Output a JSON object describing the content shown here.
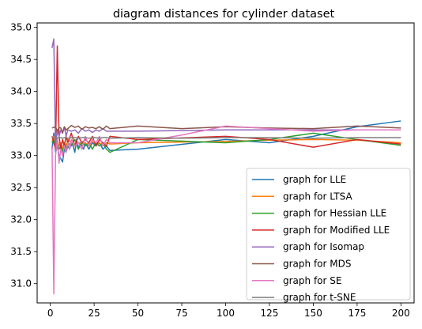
{
  "chart_data": {
    "type": "line",
    "title": "diagram distances for cylinder dataset",
    "xlabel": "",
    "ylabel": "",
    "xlim": [
      -7.5,
      207.5
    ],
    "ylim": [
      30.7,
      35.07
    ],
    "xticks": [
      0,
      25,
      50,
      75,
      100,
      125,
      150,
      175,
      200
    ],
    "yticks": [
      31.0,
      31.5,
      32.0,
      32.5,
      33.0,
      33.5,
      34.0,
      34.5,
      35.0
    ],
    "ytick_format": 1,
    "grid": false,
    "legend_position": "lower right",
    "series": [
      {
        "name": "graph for LLE",
        "color": "#1f77b4",
        "x": [
          1,
          2,
          3,
          4,
          5,
          6,
          7,
          8,
          9,
          10,
          11,
          12,
          13,
          14,
          15,
          16,
          17,
          18,
          19,
          20,
          22,
          24,
          26,
          28,
          30,
          32,
          34,
          50,
          100,
          125,
          150,
          175,
          200
        ],
        "y": [
          33.1,
          33.35,
          33.05,
          33.15,
          33.0,
          32.95,
          32.9,
          33.1,
          33.05,
          33.15,
          33.1,
          33.2,
          33.15,
          33.05,
          33.25,
          33.1,
          33.2,
          33.15,
          33.1,
          33.2,
          33.1,
          33.2,
          33.15,
          33.2,
          33.1,
          33.15,
          33.08,
          33.1,
          33.25,
          33.2,
          33.3,
          33.45,
          33.54
        ]
      },
      {
        "name": "graph for LTSA",
        "color": "#ff7f0e",
        "x": [
          1,
          2,
          3,
          4,
          5,
          6,
          7,
          8,
          9,
          10,
          12,
          14,
          16,
          18,
          20,
          22,
          24,
          26,
          28,
          30,
          32,
          34,
          50,
          100,
          125,
          150,
          175,
          200
        ],
        "y": [
          33.2,
          33.3,
          33.1,
          33.25,
          33.15,
          33.2,
          33.1,
          33.2,
          33.15,
          33.25,
          33.2,
          33.15,
          33.2,
          33.18,
          33.2,
          33.15,
          33.22,
          33.18,
          33.2,
          33.15,
          33.2,
          33.18,
          33.2,
          33.22,
          33.24,
          33.25,
          33.24,
          33.2
        ]
      },
      {
        "name": "graph for Hessian LLE",
        "color": "#2ca02c",
        "x": [
          1,
          2,
          3,
          4,
          5,
          6,
          7,
          8,
          9,
          10,
          12,
          14,
          16,
          18,
          20,
          22,
          24,
          26,
          28,
          30,
          32,
          34,
          50,
          100,
          125,
          150,
          175,
          200
        ],
        "y": [
          33.2,
          33.25,
          33.1,
          33.2,
          33.1,
          33.15,
          33.05,
          33.2,
          33.1,
          33.2,
          33.15,
          33.25,
          33.1,
          33.2,
          33.15,
          33.2,
          33.1,
          33.2,
          33.15,
          33.2,
          33.1,
          33.05,
          33.25,
          33.2,
          33.25,
          33.35,
          33.25,
          33.16
        ]
      },
      {
        "name": "graph for Modified LLE",
        "color": "#d62728",
        "x": [
          1,
          2,
          3,
          4,
          5,
          6,
          7,
          8,
          9,
          10,
          12,
          14,
          16,
          18,
          20,
          22,
          24,
          26,
          28,
          30,
          32,
          34,
          50,
          100,
          125,
          150,
          175,
          200
        ],
        "y": [
          33.3,
          33.2,
          33.1,
          34.71,
          33.3,
          33.1,
          33.25,
          33.15,
          33.3,
          33.2,
          33.35,
          33.15,
          33.3,
          33.2,
          33.25,
          33.2,
          33.3,
          33.15,
          33.25,
          33.2,
          33.15,
          33.3,
          33.25,
          33.3,
          33.25,
          33.13,
          33.25,
          33.18
        ]
      },
      {
        "name": "graph for Isomap",
        "color": "#9467bd",
        "x": [
          1,
          2,
          3,
          4,
          5,
          6,
          7,
          8,
          9,
          10,
          12,
          14,
          16,
          18,
          20,
          22,
          24,
          26,
          28,
          30,
          32,
          34,
          50,
          100,
          125,
          150,
          175,
          200
        ],
        "y": [
          34.68,
          34.82,
          33.1,
          33.4,
          33.3,
          33.4,
          33.35,
          33.45,
          33.3,
          33.4,
          33.38,
          33.4,
          33.35,
          33.42,
          33.38,
          33.4,
          33.36,
          33.4,
          33.38,
          33.42,
          33.38,
          33.38,
          33.38,
          33.4,
          33.4,
          33.4,
          33.4,
          33.4
        ]
      },
      {
        "name": "graph for MDS",
        "color": "#8c564b",
        "x": [
          1,
          2,
          3,
          4,
          5,
          6,
          7,
          8,
          9,
          10,
          12,
          14,
          16,
          18,
          20,
          22,
          24,
          26,
          28,
          30,
          32,
          34,
          50,
          75,
          100,
          125,
          150,
          175,
          200
        ],
        "y": [
          33.43,
          33.44,
          33.45,
          33.38,
          33.44,
          33.43,
          33.35,
          33.45,
          33.4,
          33.42,
          33.47,
          33.44,
          33.46,
          33.41,
          33.45,
          33.43,
          33.44,
          33.42,
          33.45,
          33.41,
          33.46,
          33.42,
          33.46,
          33.42,
          33.45,
          33.43,
          33.42,
          33.46,
          33.43
        ]
      },
      {
        "name": "graph for SE",
        "color": "#e377c2",
        "x": [
          1,
          2,
          3,
          4,
          5,
          6,
          7,
          8,
          9,
          10,
          11,
          12,
          14,
          16,
          18,
          20,
          22,
          24,
          26,
          28,
          30,
          32,
          34,
          50,
          75,
          100,
          125,
          150,
          175,
          200
        ],
        "y": [
          33.15,
          30.84,
          33.0,
          33.25,
          32.88,
          33.1,
          33.0,
          33.15,
          33.05,
          33.2,
          33.1,
          33.25,
          33.15,
          33.2,
          33.1,
          33.3,
          33.15,
          33.25,
          33.2,
          33.3,
          33.15,
          33.25,
          33.2,
          33.2,
          33.32,
          33.46,
          33.42,
          33.38,
          33.4,
          33.4
        ]
      },
      {
        "name": "graph for t-SNE",
        "color": "#7f7f7f",
        "x": [
          1,
          2,
          3,
          4,
          5,
          6,
          7,
          8,
          9,
          10,
          12,
          14,
          16,
          18,
          20,
          22,
          24,
          26,
          28,
          30,
          32,
          34,
          50,
          75,
          100,
          125,
          150,
          175,
          200
        ],
        "y": [
          33.28,
          33.28,
          33.28,
          33.27,
          33.28,
          33.28,
          33.27,
          33.28,
          33.28,
          33.27,
          33.28,
          33.28,
          33.27,
          33.28,
          33.28,
          33.27,
          33.28,
          33.28,
          33.27,
          33.28,
          33.28,
          33.27,
          33.28,
          33.27,
          33.28,
          33.28,
          33.27,
          33.28,
          33.28
        ]
      }
    ]
  }
}
